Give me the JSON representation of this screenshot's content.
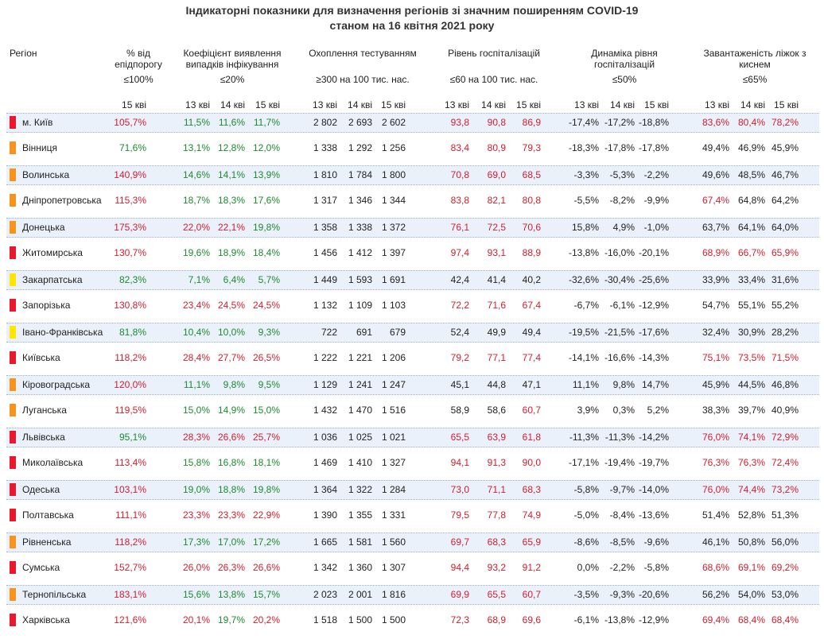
{
  "title_line1": "Індикаторні показники для визначення регіонів зі значним поширенням COVID-19",
  "title_line2": "станом на 16 квітня 2021 року",
  "headers": {
    "region": "Регіон",
    "epi": "% від епідпорогу",
    "epi_thr": "≤100%",
    "coef": "Коефіцієнт виявлення випадків інфікування",
    "coef_thr": "≤20%",
    "test": "Охоплення тестуванням",
    "test_thr": "≥300 на 100 тис. нас.",
    "hosp": "Рівень госпіталізацій",
    "hosp_thr": "≤60 на 100 тис. нас.",
    "dyn": "Динаміка рівня госпіталізацій",
    "dyn_thr": "≤50%",
    "oxy": "Завантаженість ліжок з киснем",
    "oxy_thr": "≤65%"
  },
  "days": {
    "d13": "13 кві",
    "d14": "14 кві",
    "d15": "15 кві"
  },
  "status_colors": {
    "red": "#e8192c",
    "orange": "#f7941d",
    "yellow": "#ffe600"
  },
  "value_colors": {
    "red": "#d0202f",
    "green": "#1e8a2e",
    "dark": "#222222"
  },
  "rows": [
    {
      "status": "red",
      "region": "м. Київ",
      "epi": "105,7%",
      "coef": [
        "11,5%",
        "11,6%",
        "11,7%"
      ],
      "test": [
        "2 802",
        "2 693",
        "2 602"
      ],
      "hosp": [
        "93,8",
        "90,8",
        "86,9"
      ],
      "dyn": [
        "-17,4%",
        "-17,2%",
        "-18,8%"
      ],
      "oxy": [
        "83,6%",
        "80,4%",
        "78,2%"
      ]
    },
    {
      "status": "orange",
      "region": "Вінниця",
      "epi": "71,6%",
      "coef": [
        "13,1%",
        "12,8%",
        "12,0%"
      ],
      "test": [
        "1 338",
        "1 292",
        "1 256"
      ],
      "hosp": [
        "83,4",
        "80,9",
        "79,3"
      ],
      "dyn": [
        "-18,3%",
        "-17,8%",
        "-17,8%"
      ],
      "oxy": [
        "49,4%",
        "46,9%",
        "45,9%"
      ]
    },
    {
      "status": "orange",
      "region": "Волинська",
      "epi": "140,9%",
      "coef": [
        "14,6%",
        "14,1%",
        "13,9%"
      ],
      "test": [
        "1 810",
        "1 784",
        "1 800"
      ],
      "hosp": [
        "70,8",
        "69,0",
        "68,5"
      ],
      "dyn": [
        "-3,3%",
        "-5,3%",
        "-2,2%"
      ],
      "oxy": [
        "49,6%",
        "48,5%",
        "46,7%"
      ]
    },
    {
      "status": "orange",
      "region": "Дніпропетровська",
      "epi": "115,3%",
      "coef": [
        "18,7%",
        "18,3%",
        "17,6%"
      ],
      "test": [
        "1 317",
        "1 346",
        "1 344"
      ],
      "hosp": [
        "83,8",
        "82,1",
        "80,8"
      ],
      "dyn": [
        "-5,5%",
        "-8,2%",
        "-9,9%"
      ],
      "oxy": [
        "67,4%",
        "64,8%",
        "64,2%"
      ]
    },
    {
      "status": "orange",
      "region": "Донецька",
      "epi": "175,3%",
      "coef": [
        "22,0%",
        "22,1%",
        "19,8%"
      ],
      "test": [
        "1 358",
        "1 338",
        "1 372"
      ],
      "hosp": [
        "76,1",
        "72,5",
        "70,6"
      ],
      "dyn": [
        "15,8%",
        "4,9%",
        "-1,0%"
      ],
      "oxy": [
        "63,7%",
        "64,1%",
        "64,0%"
      ]
    },
    {
      "status": "red",
      "region": "Житомирська",
      "epi": "130,7%",
      "coef": [
        "19,6%",
        "18,9%",
        "18,4%"
      ],
      "test": [
        "1 456",
        "1 412",
        "1 397"
      ],
      "hosp": [
        "97,4",
        "93,1",
        "88,9"
      ],
      "dyn": [
        "-13,8%",
        "-16,0%",
        "-20,1%"
      ],
      "oxy": [
        "68,9%",
        "66,7%",
        "65,9%"
      ]
    },
    {
      "status": "yellow",
      "region": "Закарпатська",
      "epi": "82,3%",
      "coef": [
        "7,1%",
        "6,4%",
        "5,7%"
      ],
      "test": [
        "1 449",
        "1 593",
        "1 691"
      ],
      "hosp": [
        "42,4",
        "41,4",
        "40,2"
      ],
      "dyn": [
        "-32,6%",
        "-30,4%",
        "-25,6%"
      ],
      "oxy": [
        "33,9%",
        "33,4%",
        "31,6%"
      ]
    },
    {
      "status": "red",
      "region": "Запорізька",
      "epi": "130,8%",
      "coef": [
        "23,4%",
        "24,5%",
        "24,5%"
      ],
      "test": [
        "1 132",
        "1 109",
        "1 103"
      ],
      "hosp": [
        "72,2",
        "71,6",
        "67,4"
      ],
      "dyn": [
        "-6,7%",
        "-6,1%",
        "-12,9%"
      ],
      "oxy": [
        "54,7%",
        "55,1%",
        "55,2%"
      ]
    },
    {
      "status": "yellow",
      "region": "Івано-Франківська",
      "epi": "81,8%",
      "coef": [
        "10,4%",
        "10,0%",
        "9,3%"
      ],
      "test": [
        "722",
        "691",
        "679"
      ],
      "hosp": [
        "52,4",
        "49,9",
        "49,4"
      ],
      "dyn": [
        "-19,5%",
        "-21,5%",
        "-17,6%"
      ],
      "oxy": [
        "32,4%",
        "30,9%",
        "28,2%"
      ]
    },
    {
      "status": "red",
      "region": "Київська",
      "epi": "118,2%",
      "coef": [
        "28,4%",
        "27,7%",
        "26,5%"
      ],
      "test": [
        "1 222",
        "1 221",
        "1 206"
      ],
      "hosp": [
        "79,2",
        "77,1",
        "77,4"
      ],
      "dyn": [
        "-14,1%",
        "-16,6%",
        "-14,3%"
      ],
      "oxy": [
        "75,1%",
        "73,5%",
        "71,5%"
      ]
    },
    {
      "status": "orange",
      "region": "Кіровоградська",
      "epi": "120,0%",
      "coef": [
        "11,1%",
        "9,8%",
        "9,5%"
      ],
      "test": [
        "1 129",
        "1 241",
        "1 247"
      ],
      "hosp": [
        "45,1",
        "44,8",
        "47,1"
      ],
      "dyn": [
        "11,1%",
        "9,8%",
        "14,7%"
      ],
      "oxy": [
        "45,9%",
        "44,5%",
        "46,8%"
      ]
    },
    {
      "status": "orange",
      "region": "Луганська",
      "epi": "119,5%",
      "coef": [
        "15,0%",
        "14,9%",
        "15,0%"
      ],
      "test": [
        "1 432",
        "1 470",
        "1 516"
      ],
      "hosp": [
        "58,9",
        "58,6",
        "60,7"
      ],
      "dyn": [
        "3,9%",
        "0,3%",
        "5,2%"
      ],
      "oxy": [
        "38,3%",
        "39,7%",
        "40,9%"
      ]
    },
    {
      "status": "red",
      "region": "Львівська",
      "epi": "95,1%",
      "coef": [
        "28,3%",
        "26,6%",
        "25,7%"
      ],
      "test": [
        "1 036",
        "1 025",
        "1 021"
      ],
      "hosp": [
        "65,5",
        "63,9",
        "61,8"
      ],
      "dyn": [
        "-11,3%",
        "-11,3%",
        "-14,2%"
      ],
      "oxy": [
        "76,0%",
        "74,1%",
        "72,9%"
      ]
    },
    {
      "status": "red",
      "region": "Миколаївська",
      "epi": "113,4%",
      "coef": [
        "15,8%",
        "16,8%",
        "18,1%"
      ],
      "test": [
        "1 469",
        "1 410",
        "1 327"
      ],
      "hosp": [
        "94,1",
        "91,3",
        "90,0"
      ],
      "dyn": [
        "-17,1%",
        "-19,4%",
        "-19,7%"
      ],
      "oxy": [
        "76,3%",
        "76,3%",
        "72,4%"
      ]
    },
    {
      "status": "red",
      "region": "Одеська",
      "epi": "103,1%",
      "coef": [
        "19,0%",
        "18,8%",
        "19,8%"
      ],
      "test": [
        "1 364",
        "1 322",
        "1 284"
      ],
      "hosp": [
        "73,0",
        "71,1",
        "68,3"
      ],
      "dyn": [
        "-5,8%",
        "-9,7%",
        "-14,0%"
      ],
      "oxy": [
        "76,0%",
        "74,4%",
        "73,2%"
      ]
    },
    {
      "status": "red",
      "region": "Полтавська",
      "epi": "111,1%",
      "coef": [
        "23,3%",
        "23,3%",
        "22,9%"
      ],
      "test": [
        "1 390",
        "1 355",
        "1 331"
      ],
      "hosp": [
        "79,5",
        "77,8",
        "74,9"
      ],
      "dyn": [
        "-5,0%",
        "-8,4%",
        "-13,6%"
      ],
      "oxy": [
        "51,4%",
        "52,8%",
        "51,3%"
      ]
    },
    {
      "status": "orange",
      "region": "Рівненська",
      "epi": "118,2%",
      "coef": [
        "17,3%",
        "17,0%",
        "17,2%"
      ],
      "test": [
        "1 665",
        "1 581",
        "1 560"
      ],
      "hosp": [
        "69,7",
        "68,3",
        "65,9"
      ],
      "dyn": [
        "-8,6%",
        "-8,5%",
        "-9,6%"
      ],
      "oxy": [
        "46,1%",
        "50,8%",
        "56,0%"
      ]
    },
    {
      "status": "red",
      "region": "Сумська",
      "epi": "152,7%",
      "coef": [
        "26,0%",
        "26,3%",
        "26,6%"
      ],
      "test": [
        "1 342",
        "1 360",
        "1 307"
      ],
      "hosp": [
        "94,4",
        "93,2",
        "91,2"
      ],
      "dyn": [
        "0,0%",
        "-2,2%",
        "-5,8%"
      ],
      "oxy": [
        "68,6%",
        "69,1%",
        "69,2%"
      ]
    },
    {
      "status": "orange",
      "region": "Тернопільська",
      "epi": "183,1%",
      "coef": [
        "15,6%",
        "13,8%",
        "15,7%"
      ],
      "test": [
        "2 023",
        "2 001",
        "1 816"
      ],
      "hosp": [
        "69,9",
        "65,5",
        "60,7"
      ],
      "dyn": [
        "-3,5%",
        "-9,3%",
        "-20,6%"
      ],
      "oxy": [
        "56,2%",
        "54,0%",
        "53,0%"
      ]
    },
    {
      "status": "red",
      "region": "Харківська",
      "epi": "121,6%",
      "coef": [
        "20,1%",
        "19,7%",
        "20,2%"
      ],
      "test": [
        "1 518",
        "1 500",
        "1 500"
      ],
      "hosp": [
        "72,3",
        "68,9",
        "69,6"
      ],
      "dyn": [
        "-6,1%",
        "-13,8%",
        "-12,9%"
      ],
      "oxy": [
        "69,4%",
        "68,4%",
        "68,4%"
      ]
    }
  ]
}
